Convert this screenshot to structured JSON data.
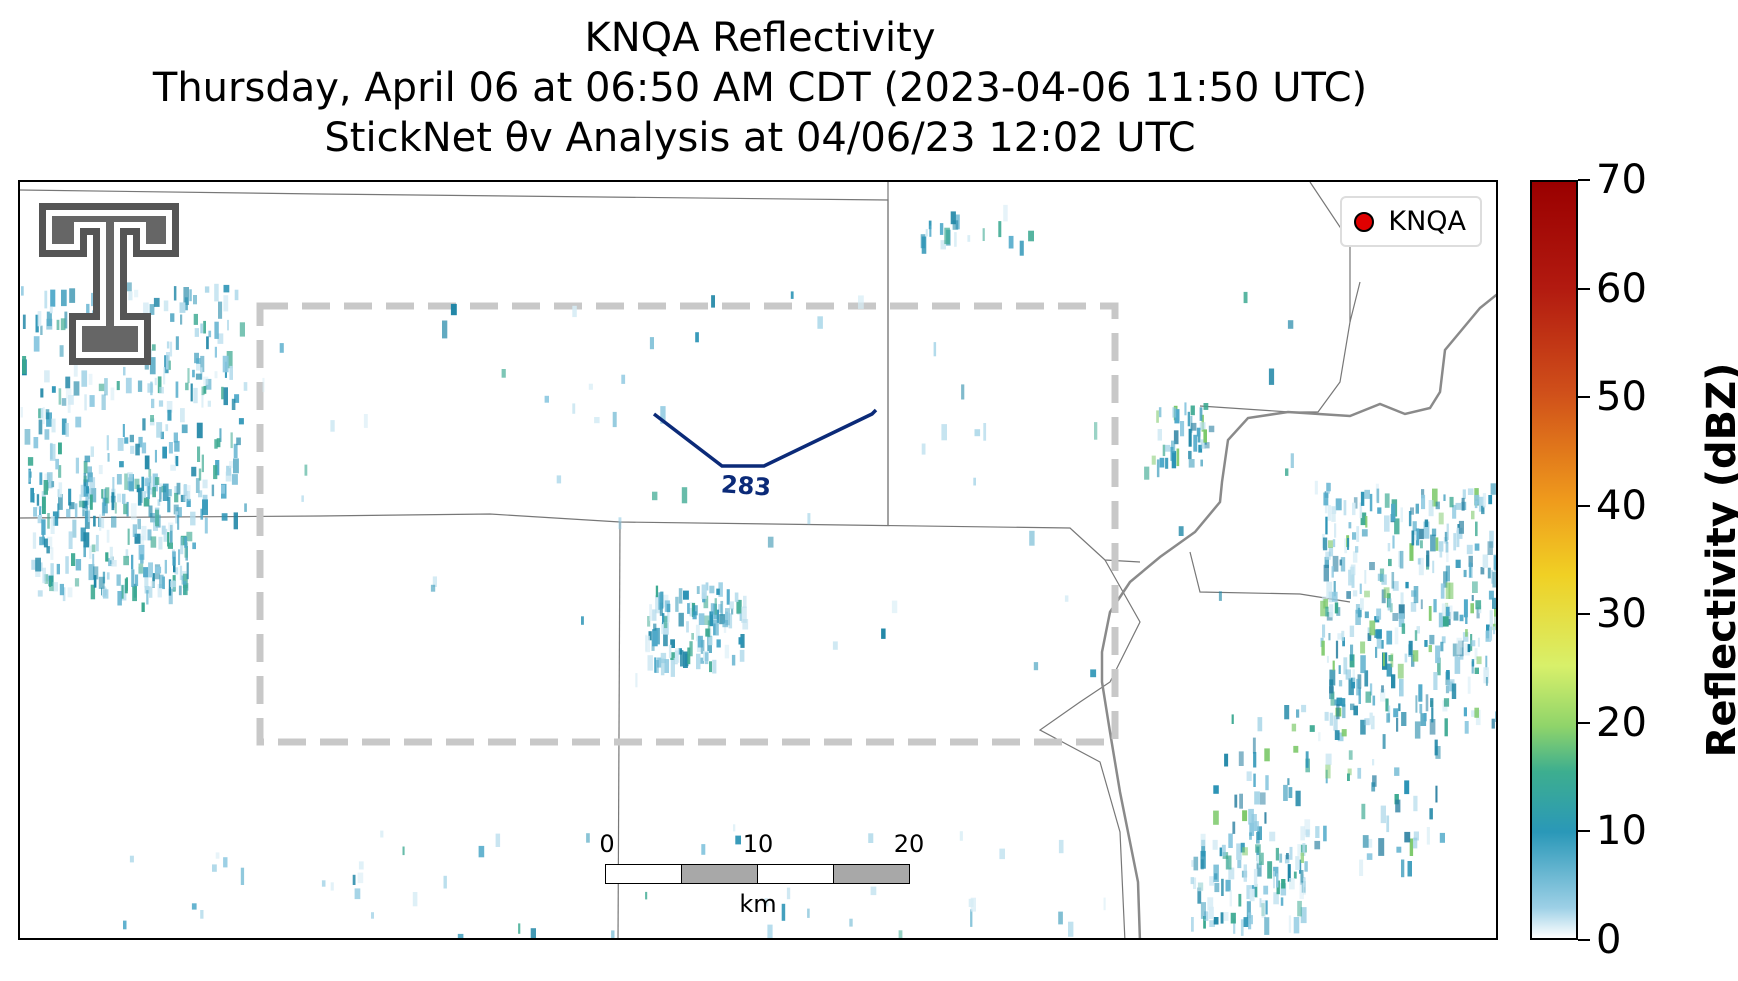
{
  "title": {
    "line1": "KNQA Reflectivity",
    "line2": "Thursday, April 06 at 06:50 AM CDT (2023-04-06 11:50 UTC)",
    "line3": "StickNet θv Analysis at 04/06/23 12:02 UTC"
  },
  "legend": {
    "label": "KNQA",
    "marker_color": "#e00000"
  },
  "wind_barb": {
    "value": "283",
    "color": "#0b2a78"
  },
  "scalebar": {
    "ticks": [
      "0",
      "10",
      "20"
    ],
    "unit": "km"
  },
  "colorbar": {
    "label": "Reflectivity (dBZ)",
    "ticks": [
      "0",
      "10",
      "20",
      "30",
      "40",
      "50",
      "60",
      "70"
    ],
    "range": [
      0,
      70
    ]
  },
  "logo": {
    "name": "Texas Tech Double T"
  },
  "colors": {
    "analysis_box": "#c8c8c8",
    "county_lines": "#777777",
    "state_line": "#808080"
  }
}
